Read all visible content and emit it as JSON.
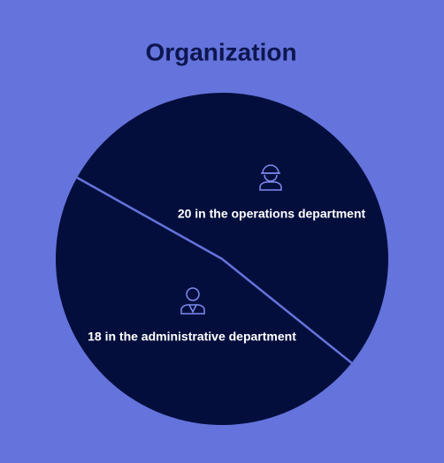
{
  "chart_data": {
    "type": "pie",
    "title": "Organization",
    "values": [
      20,
      18
    ],
    "value_labels": [
      "20 in the operations department",
      "18 in the administrative department"
    ],
    "colors": [
      "#040e3d",
      "#040e3d"
    ]
  }
}
